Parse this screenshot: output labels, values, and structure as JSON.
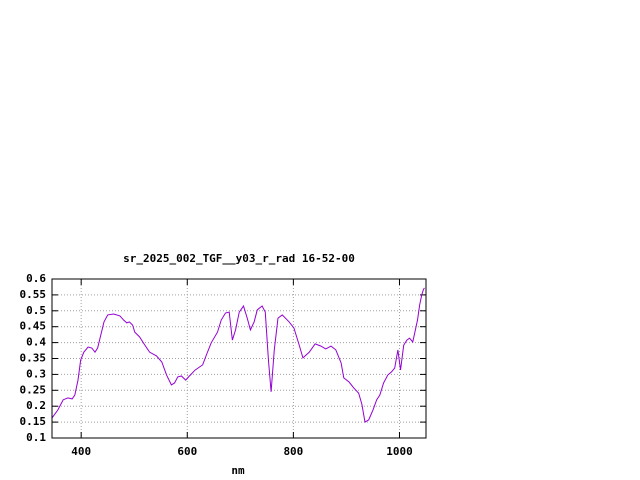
{
  "chart_data": {
    "type": "line",
    "title": "sr_2025_002_TGF__y03_r_rad 16-52-00",
    "x_label": "nm",
    "xlim": [
      345,
      1050
    ],
    "xticks": [
      400,
      600,
      800,
      1000
    ],
    "ylim": [
      0.1,
      0.6
    ],
    "yticks": [
      0.1,
      0.15,
      0.2,
      0.25,
      0.3,
      0.35,
      0.4,
      0.45,
      0.5,
      0.55,
      0.6
    ],
    "grid": true,
    "series": [
      {
        "color": "#9400d3",
        "x": [
          345,
          356,
          366,
          375,
          383,
          388,
          394,
          399,
          405,
          413,
          420,
          426,
          431,
          437,
          443,
          450,
          461,
          473,
          480,
          486,
          491,
          497,
          501,
          510,
          520,
          529,
          542,
          552,
          561,
          570,
          576,
          582,
          589,
          597,
          604,
          615,
          629,
          636,
          645,
          657,
          664,
          672,
          679,
          685,
          691,
          698,
          706,
          713,
          719,
          726,
          732,
          741,
          747,
          753,
          758,
          764,
          771,
          779,
          792,
          801,
          811,
          818,
          830,
          841,
          852,
          861,
          871,
          880,
          890,
          895,
          905,
          914,
          923,
          929,
          935,
          942,
          950,
          957,
          963,
          970,
          978,
          985,
          991,
          997,
          1002,
          1008,
          1014,
          1019,
          1025,
          1030,
          1034,
          1038,
          1042,
          1045,
          1047
        ],
        "values": [
          0.163,
          0.188,
          0.22,
          0.226,
          0.223,
          0.235,
          0.282,
          0.345,
          0.37,
          0.386,
          0.383,
          0.37,
          0.383,
          0.424,
          0.465,
          0.487,
          0.49,
          0.484,
          0.471,
          0.462,
          0.465,
          0.455,
          0.433,
          0.418,
          0.392,
          0.37,
          0.358,
          0.339,
          0.298,
          0.267,
          0.273,
          0.292,
          0.295,
          0.282,
          0.295,
          0.314,
          0.33,
          0.361,
          0.399,
          0.433,
          0.471,
          0.493,
          0.496,
          0.408,
          0.44,
          0.496,
          0.515,
          0.477,
          0.44,
          0.465,
          0.503,
          0.515,
          0.496,
          0.345,
          0.245,
          0.377,
          0.477,
          0.487,
          0.465,
          0.446,
          0.392,
          0.352,
          0.37,
          0.396,
          0.389,
          0.38,
          0.389,
          0.377,
          0.336,
          0.289,
          0.276,
          0.257,
          0.241,
          0.207,
          0.15,
          0.157,
          0.188,
          0.22,
          0.235,
          0.273,
          0.298,
          0.308,
          0.32,
          0.377,
          0.314,
          0.392,
          0.408,
          0.414,
          0.402,
          0.44,
          0.471,
          0.518,
          0.55,
          0.566,
          0.572
        ]
      }
    ]
  }
}
